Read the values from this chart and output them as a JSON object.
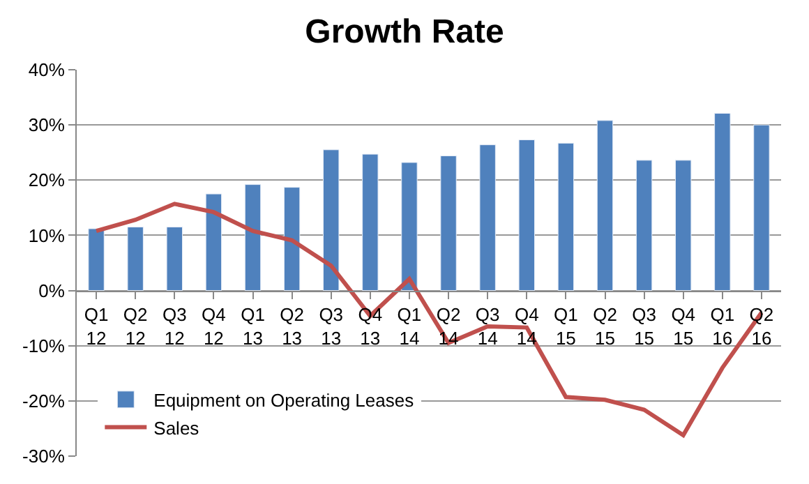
{
  "chart_data": {
    "type": "bar",
    "title": "Growth Rate",
    "categories": [
      "Q1\n12",
      "Q2\n12",
      "Q3\n12",
      "Q4\n12",
      "Q1\n13",
      "Q2\n13",
      "Q3\n13",
      "Q4\n13",
      "Q1\n14",
      "Q2\n14",
      "Q3\n14",
      "Q4\n14",
      "Q1\n15",
      "Q2\n15",
      "Q3\n15",
      "Q4\n15",
      "Q1\n16",
      "Q2\n16"
    ],
    "series": [
      {
        "name": "Equipment on Operating Leases",
        "color": "#4f81bd",
        "values": [
          11.2,
          11.5,
          11.5,
          17.5,
          19.2,
          18.7,
          25.5,
          24.7,
          23.2,
          24.4,
          26.4,
          27.3,
          26.7,
          30.8,
          23.6,
          23.6,
          32.1,
          30.0
        ]
      },
      {
        "name": "Sales",
        "type": "line",
        "color": "#c0504d",
        "values": [
          10.8,
          12.8,
          15.7,
          14.2,
          10.8,
          9.1,
          4.5,
          -4.6,
          2.1,
          -9.5,
          -6.5,
          -6.7,
          -19.3,
          -19.8,
          -21.6,
          -26.2,
          -14,
          -4
        ]
      }
    ],
    "ylim": [
      -30,
      40
    ],
    "yticks": [
      {
        "value": -30,
        "label": "-30%"
      },
      {
        "value": -20,
        "label": "-20%"
      },
      {
        "value": -10,
        "label": "-10%"
      },
      {
        "value": 0,
        "label": "0%"
      },
      {
        "value": 10,
        "label": "10%"
      },
      {
        "value": 20,
        "label": "20%"
      },
      {
        "value": 30,
        "label": "30%"
      },
      {
        "value": 40,
        "label": "40%"
      }
    ],
    "grid": "y",
    "legend": "bottom left",
    "marker": "none",
    "line_style": "solid"
  }
}
